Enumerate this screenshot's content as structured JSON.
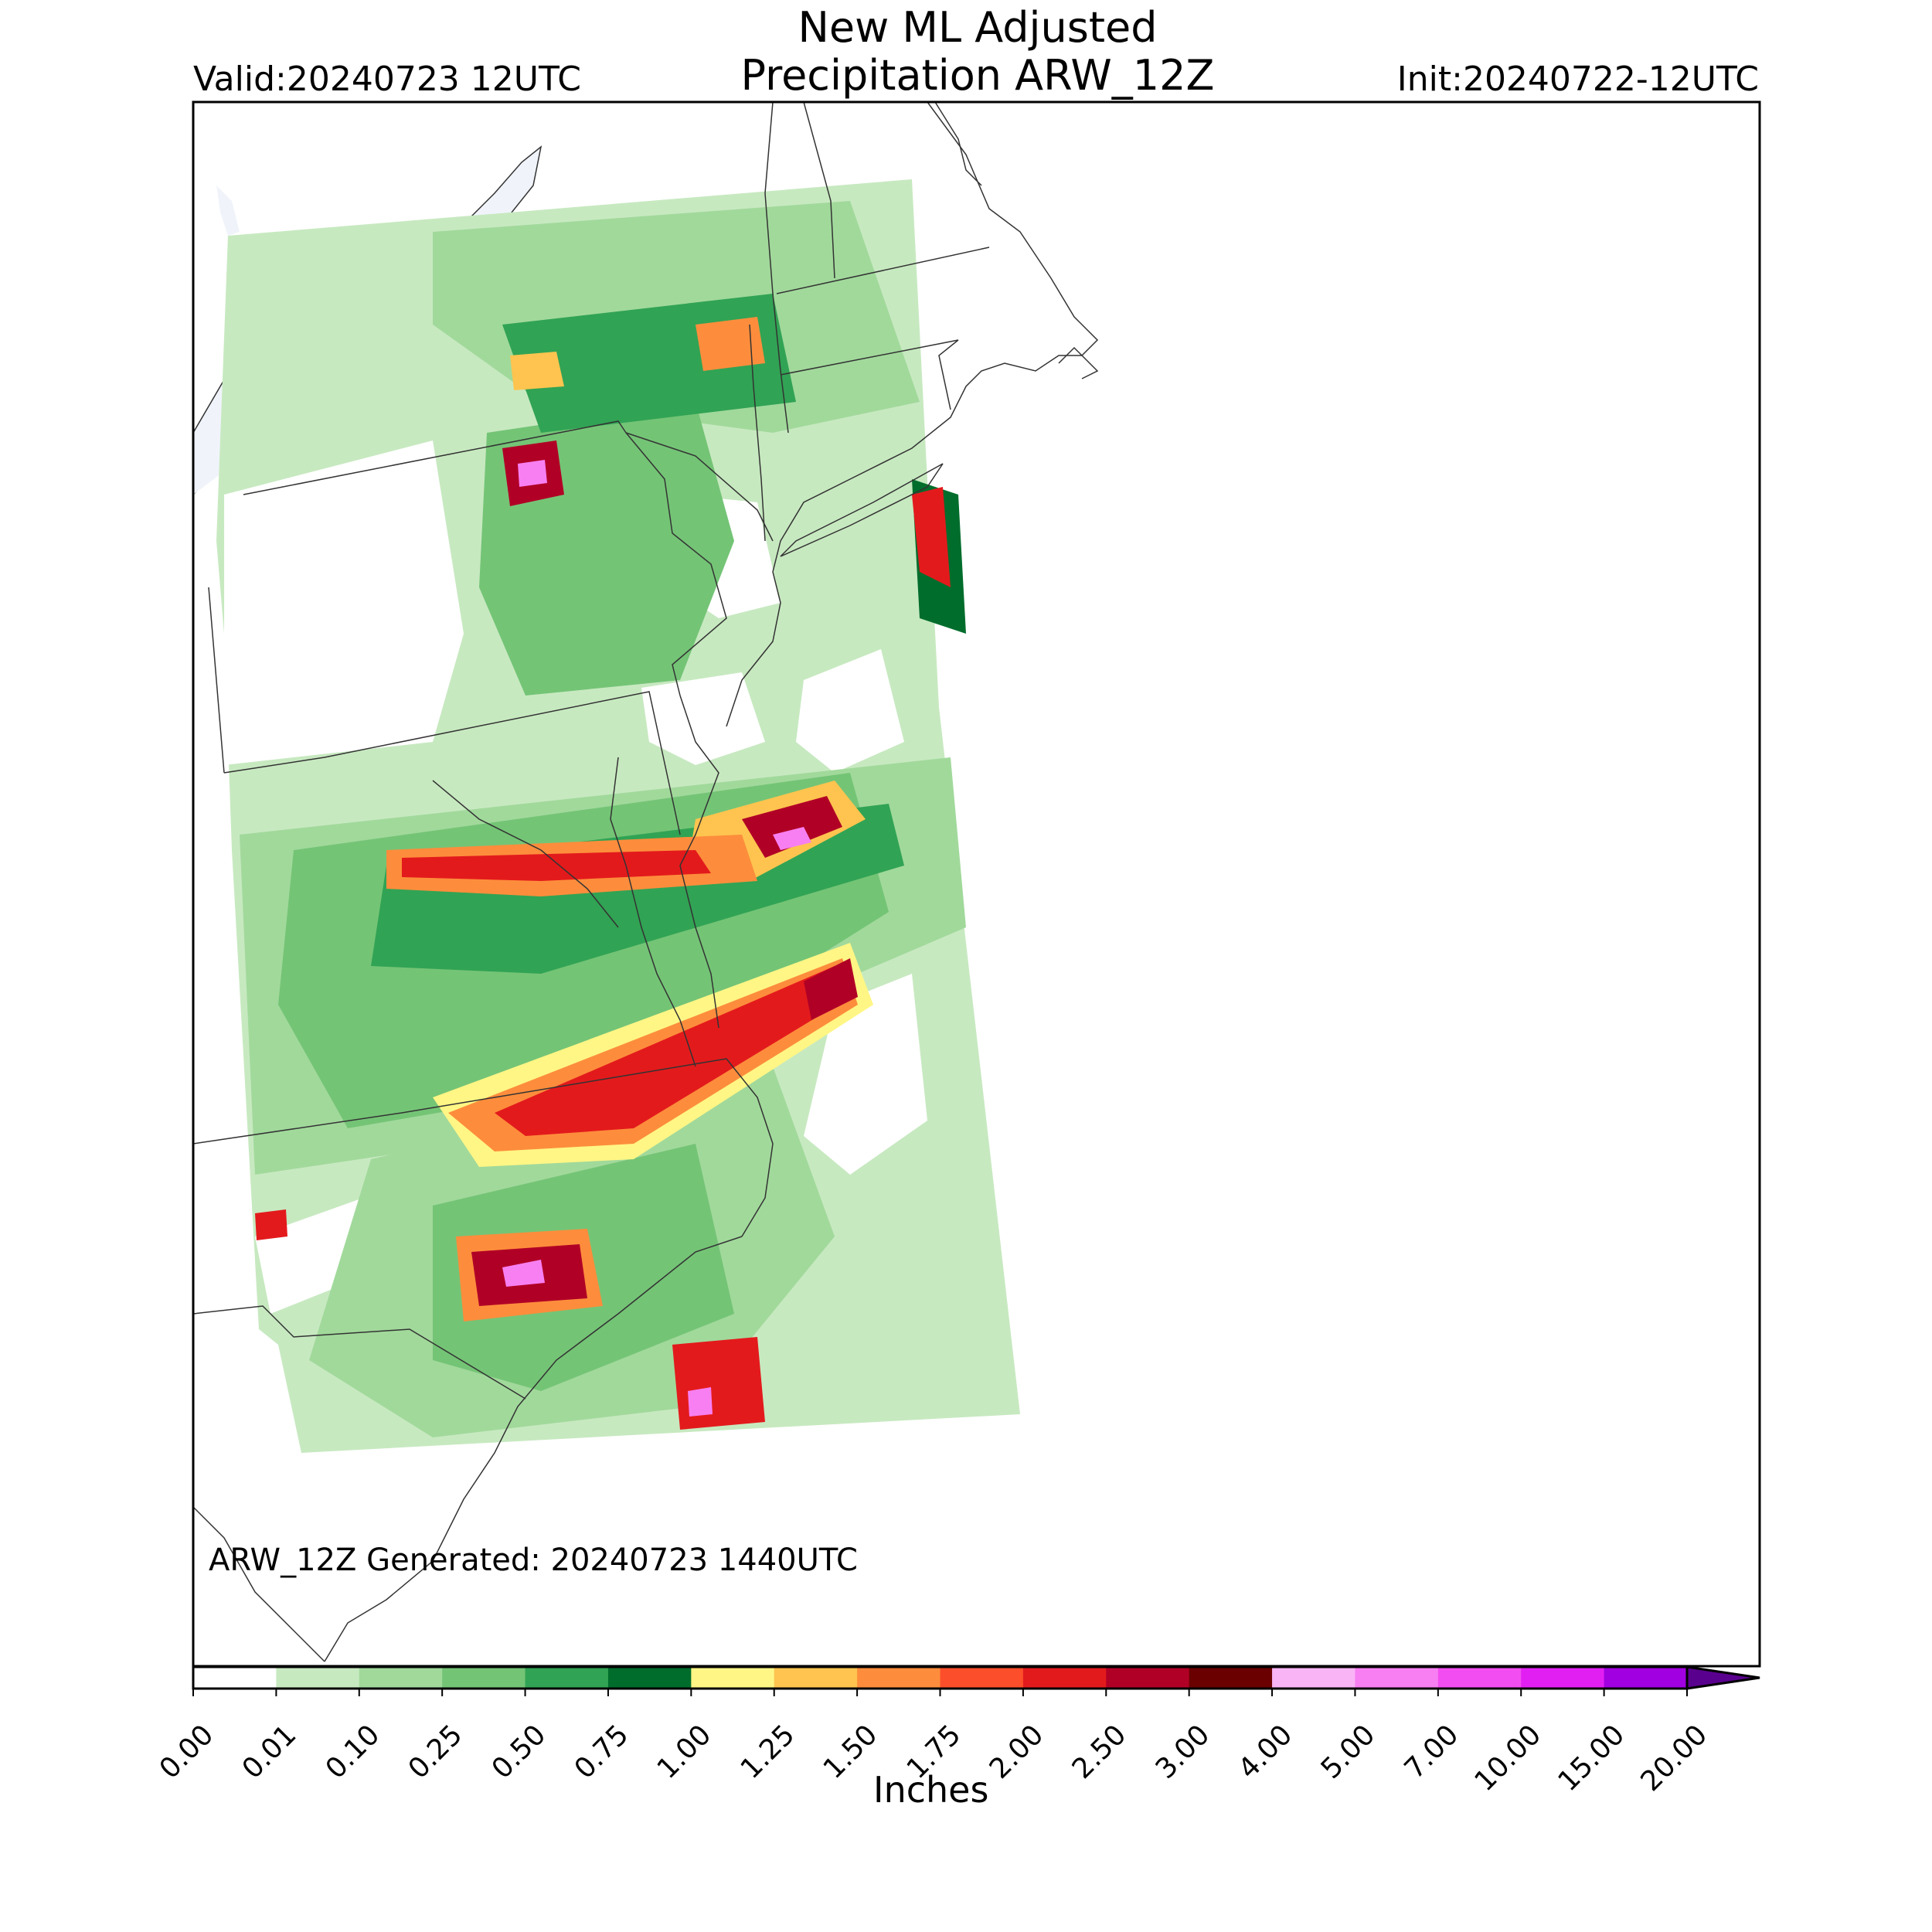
{
  "title": {
    "line1": "New ML Adjusted",
    "line2": "Precipitation ARW_12Z"
  },
  "valid_label": "Valid:20240723 12UTC",
  "init_label": "Init:20240722-12UTC",
  "generated_label": "ARW_12Z Generated: 20240723 1440UTC",
  "colorbar": {
    "label": "Inches",
    "levels": [
      "0.00",
      "0.01",
      "0.10",
      "0.25",
      "0.50",
      "0.75",
      "1.00",
      "1.25",
      "1.50",
      "1.75",
      "2.00",
      "2.50",
      "3.00",
      "4.00",
      "5.00",
      "7.00",
      "10.00",
      "15.00",
      "20.00"
    ],
    "colors": [
      "#ffffff",
      "#c7e9c0",
      "#a1d99b",
      "#74c476",
      "#31a354",
      "#006d2c",
      "#fff685",
      "#fec44f",
      "#fd8d3c",
      "#fc4e2a",
      "#e31a1c",
      "#b10026",
      "#6b0000",
      "#f9b4f5",
      "#f77ff2",
      "#f24df0",
      "#e21ff3",
      "#a100e0"
    ],
    "extend_color": "#5a008f"
  },
  "map": {
    "water_color": "#f0f4fa",
    "region": "US Mid-Atlantic and Northeast"
  }
}
